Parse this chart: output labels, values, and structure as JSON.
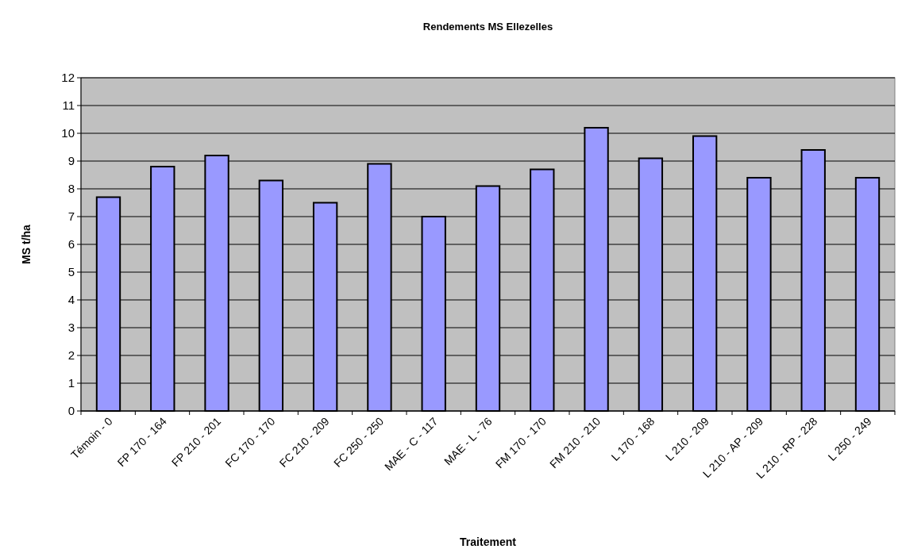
{
  "chart_data": {
    "type": "bar",
    "title": "Rendements MS Ellezelles",
    "xlabel": "Traitement",
    "ylabel": "MS t/ha",
    "categories": [
      "Témoin - 0",
      "FP 170 - 164",
      "FP 210 - 201",
      "FC 170 - 170",
      "FC 210 - 209",
      "FC 250 - 250",
      "MAE - C - 117",
      "MAE - L - 76",
      "FM 170 - 170",
      "FM 210 - 210",
      "L 170 - 168",
      "L 210 - 209",
      "L 210 - AP - 209",
      "L 210 - RP - 228",
      "L 250 - 249"
    ],
    "values": [
      7.7,
      8.8,
      9.2,
      8.3,
      7.5,
      8.9,
      7.0,
      8.1,
      8.7,
      10.2,
      9.1,
      9.9,
      8.4,
      9.4,
      8.4
    ],
    "color": "#9999ff",
    "ylim": [
      0,
      12
    ],
    "yticks": [
      0,
      1,
      2,
      3,
      4,
      5,
      6,
      7,
      8,
      9,
      10,
      11,
      12
    ],
    "grid": "y"
  }
}
